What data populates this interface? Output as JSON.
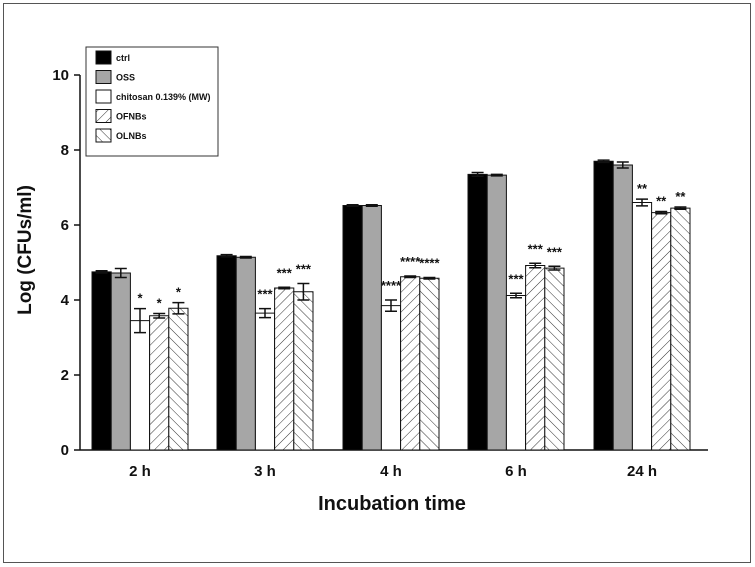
{
  "chart_data": {
    "type": "bar",
    "title": "",
    "xlabel": "Incubation time",
    "ylabel": "Log (CFUs/ml)",
    "ylim": [
      0,
      10
    ],
    "yticks": [
      0,
      2,
      4,
      6,
      8,
      10
    ],
    "grid": false,
    "legend_position": "top-left",
    "categories": [
      "2 h",
      "3 h",
      "4 h",
      "6 h",
      "24 h"
    ],
    "series": [
      {
        "name": "ctrl",
        "fill": "#000000",
        "pattern": "solid",
        "values": [
          4.75,
          5.18,
          6.52,
          7.35,
          7.7
        ],
        "errors": [
          0.03,
          0.03,
          0.02,
          0.05,
          0.03
        ],
        "significance": [
          "",
          "",
          "",
          "",
          ""
        ]
      },
      {
        "name": "OSS",
        "fill": "#a6a6a6",
        "pattern": "solid",
        "values": [
          4.72,
          5.14,
          6.52,
          7.33,
          7.6
        ],
        "errors": [
          0.12,
          0.02,
          0.02,
          0.02,
          0.08
        ],
        "significance": [
          "",
          "",
          "",
          "",
          ""
        ]
      },
      {
        "name": "chitosan 0.139% (MW)",
        "fill": "#ffffff",
        "pattern": "none",
        "values": [
          3.45,
          3.65,
          3.85,
          4.12,
          6.6
        ],
        "errors": [
          0.32,
          0.12,
          0.15,
          0.06,
          0.09
        ],
        "significance": [
          "*",
          "***",
          "****",
          "***",
          "**"
        ]
      },
      {
        "name": "OFNBs",
        "fill": "#ffffff",
        "pattern": "forward",
        "values": [
          3.58,
          4.32,
          4.62,
          4.92,
          6.33
        ],
        "errors": [
          0.06,
          0.02,
          0.02,
          0.06,
          0.03
        ],
        "significance": [
          "*",
          "***",
          "****",
          "***",
          "**"
        ]
      },
      {
        "name": "OLNBs",
        "fill": "#ffffff",
        "pattern": "backward",
        "values": [
          3.78,
          4.22,
          4.58,
          4.85,
          6.45
        ],
        "errors": [
          0.15,
          0.22,
          0.02,
          0.05,
          0.03
        ],
        "significance": [
          "*",
          "***",
          "****",
          "***",
          "**"
        ]
      }
    ]
  }
}
